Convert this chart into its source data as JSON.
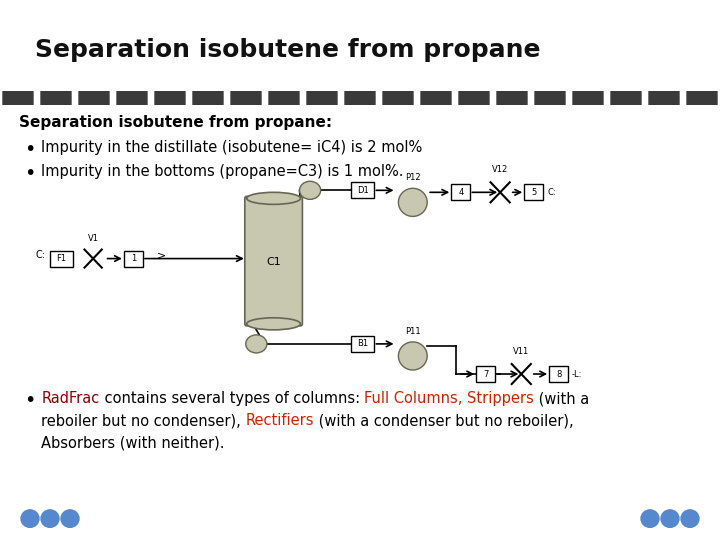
{
  "title": "Separation isobutene from propane",
  "title_bg_color": "#1565C0",
  "title_text_color": "white",
  "header_stripe_color": "#111111",
  "body_bg_color": "#ffffff",
  "footer_bg_color": "#1e5ca8",
  "bold_heading": "Separation isobutene from propane:",
  "bullet1": "Impurity in the distillate (isobutene= iC4) is 2 mol%",
  "bullet2": "Impurity in the bottoms (propane=C3) is 1 mol%.",
  "b3_p1": "RadFrac",
  "b3_p2": " contains several types of columns: ",
  "b3_col1": "Full Columns, Strippers",
  "b3_p3": " (with a",
  "b3_p4": "reboiler but no condenser), ",
  "b3_col2": "Rectifiers",
  "b3_p5": " (with a condenser but no reboiler),",
  "b3_p6": "Absorbers (with neither).",
  "radfrac_color": "#8B0000",
  "highlight_color": "#cc2200",
  "font_size_title": 18,
  "font_size_body": 10.5,
  "font_size_bold": 11,
  "font_size_small": 7
}
